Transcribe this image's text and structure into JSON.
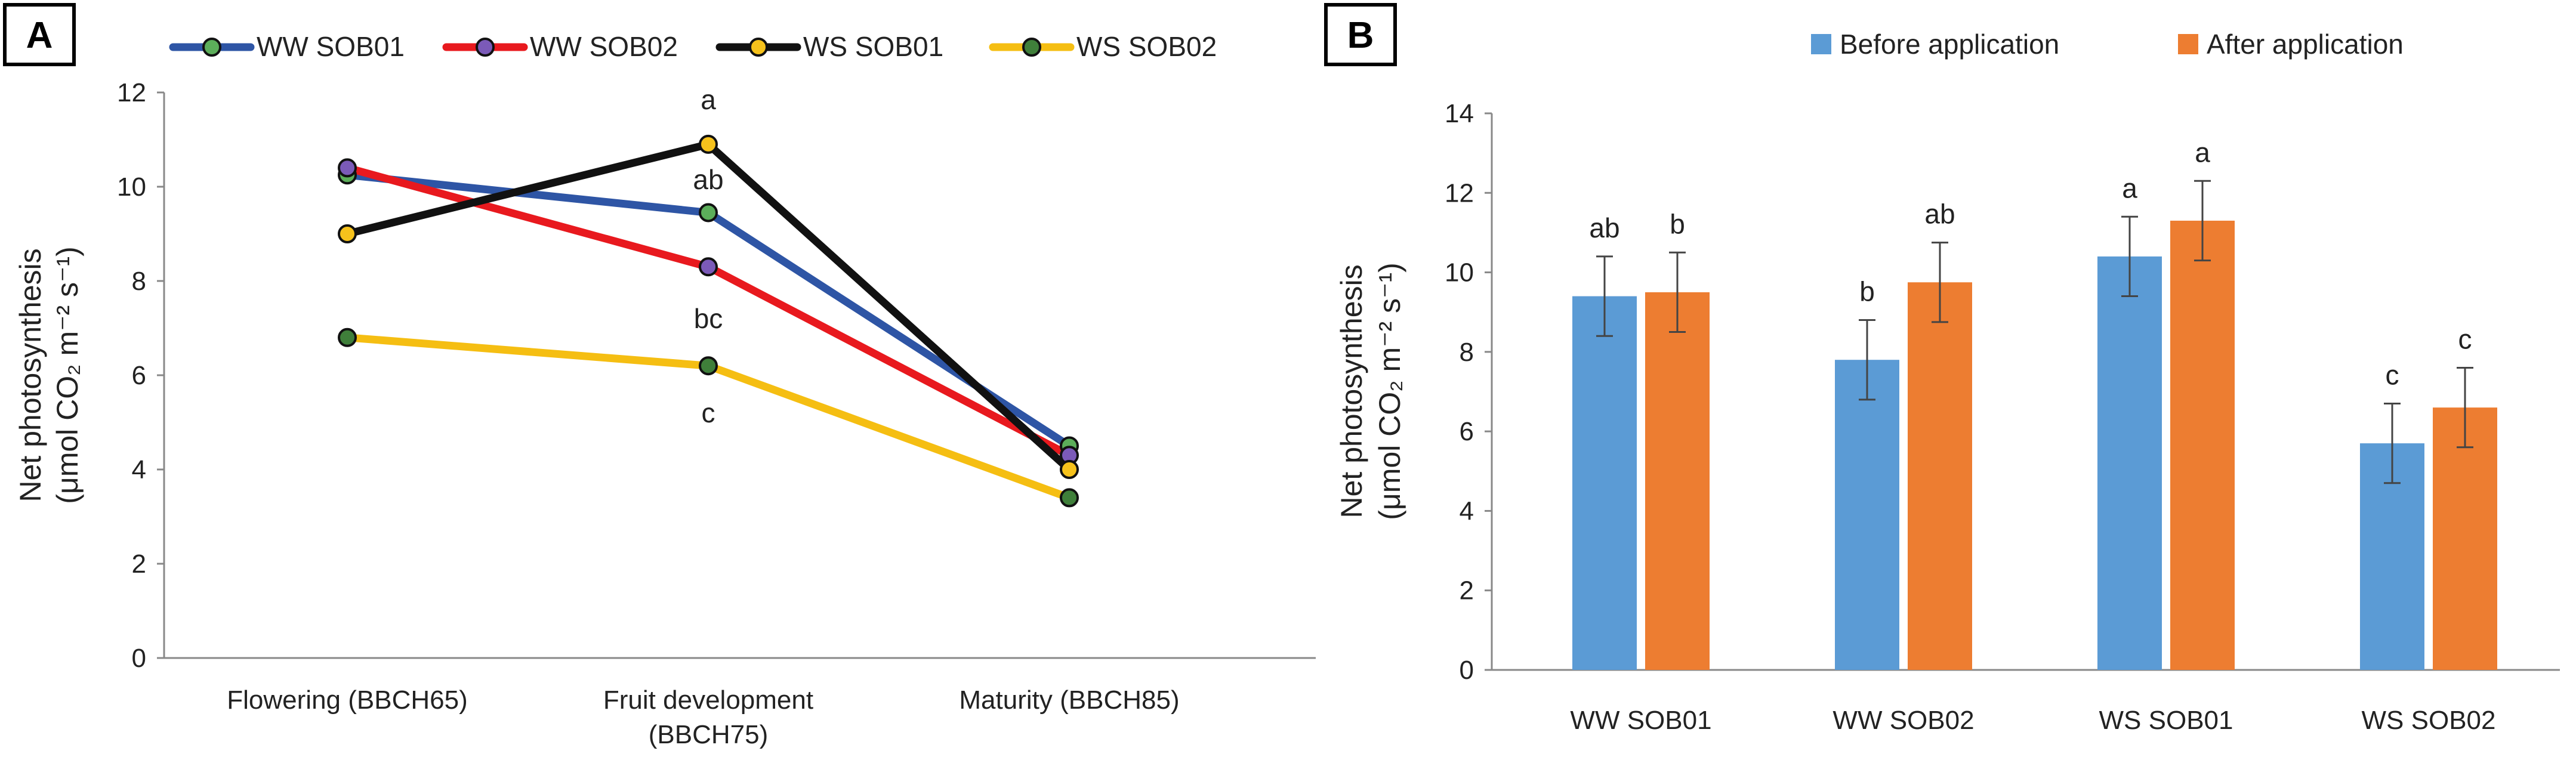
{
  "panels": [
    {
      "letter": "A"
    },
    {
      "letter": "B"
    }
  ],
  "chart_data": [
    {
      "panel": "A",
      "type": "line",
      "title": "",
      "xlabel": "",
      "ylabel_line1": "Net photosynthesis",
      "ylabel_line2": "(μmol CO₂ m⁻² s⁻¹)",
      "ylim": [
        0,
        12
      ],
      "yticks": [
        0,
        2,
        4,
        6,
        8,
        10,
        12
      ],
      "grid": false,
      "legend": "top",
      "categories": [
        [
          "Flowering (BBCH65)"
        ],
        [
          "Fruit development",
          "(BBCH75)"
        ],
        [
          "Maturity (BBCH85)"
        ]
      ],
      "series": [
        {
          "name": "WW SOB01",
          "values": [
            10.25,
            9.45,
            4.5
          ],
          "line_color": "#2e55a5",
          "marker_color": "#5cae5a"
        },
        {
          "name": "WW SOB02",
          "values": [
            10.4,
            8.3,
            4.3
          ],
          "line_color": "#e8191e",
          "marker_color": "#7b5ab8"
        },
        {
          "name": "WS SOB01",
          "values": [
            9.0,
            10.9,
            4.0
          ],
          "line_color": "#111111",
          "marker_color": "#f6c21c"
        },
        {
          "name": "WS SOB02",
          "values": [
            6.8,
            6.2,
            3.4
          ],
          "line_color": "#f5be12",
          "marker_color": "#3f7f3a"
        }
      ],
      "annotations": [
        {
          "text": "a",
          "x": 1,
          "y": 11.85
        },
        {
          "text": "ab",
          "x": 1,
          "y": 10.15
        },
        {
          "text": "bc",
          "x": 1,
          "y": 7.2
        },
        {
          "text": "c",
          "x": 1,
          "y": 5.2
        }
      ]
    },
    {
      "panel": "B",
      "type": "bar",
      "title": "",
      "xlabel": "",
      "ylabel_line1": "Net photosynthesis",
      "ylabel_line2": "(μmol CO₂ m⁻² s⁻¹)",
      "ylim": [
        0,
        14
      ],
      "yticks": [
        0,
        2,
        4,
        6,
        8,
        10,
        12,
        14
      ],
      "grid": false,
      "legend": "top-right",
      "categories": [
        "WW SOB01",
        "WW SOB02",
        "WS SOB01",
        "WS SOB02"
      ],
      "series": [
        {
          "name": "Before application",
          "color": "#5b9bd5",
          "values": [
            9.4,
            7.8,
            10.4,
            5.7
          ],
          "errors": [
            1.0,
            1.0,
            1.0,
            1.0
          ],
          "letters": [
            "ab",
            "b",
            "a",
            "c"
          ]
        },
        {
          "name": "After application",
          "color": "#ed7d31",
          "values": [
            9.5,
            9.75,
            11.3,
            6.6
          ],
          "errors": [
            1.0,
            1.0,
            1.0,
            1.0
          ],
          "letters": [
            "b",
            "ab",
            "a",
            "c"
          ]
        }
      ]
    }
  ]
}
